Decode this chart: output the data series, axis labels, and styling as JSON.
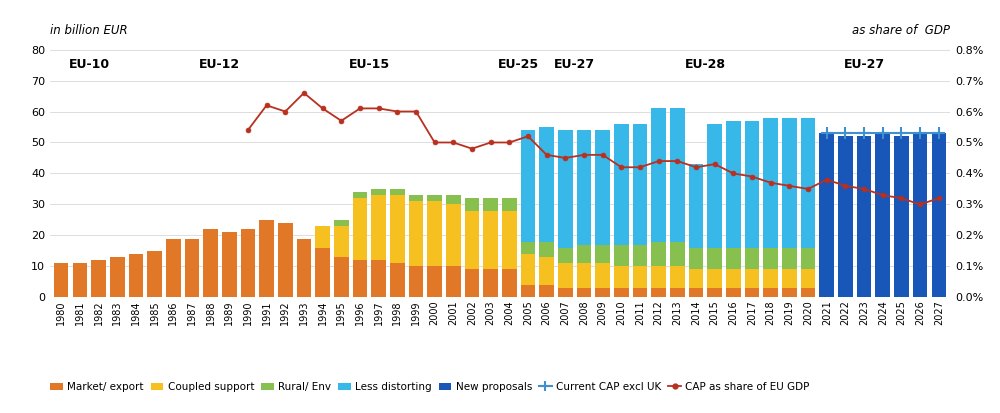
{
  "years": [
    1980,
    1981,
    1982,
    1983,
    1984,
    1985,
    1986,
    1987,
    1988,
    1989,
    1990,
    1991,
    1992,
    1993,
    1994,
    1995,
    1996,
    1997,
    1998,
    1999,
    2000,
    2001,
    2002,
    2003,
    2004,
    2005,
    2006,
    2007,
    2008,
    2009,
    2010,
    2011,
    2012,
    2013,
    2014,
    2015,
    2016,
    2017,
    2018,
    2019,
    2020,
    2021,
    2022,
    2023,
    2024,
    2025,
    2026,
    2027
  ],
  "market_export": [
    11,
    11,
    12,
    13,
    14,
    15,
    19,
    19,
    22,
    21,
    22,
    25,
    24,
    19,
    16,
    13,
    12,
    12,
    11,
    10,
    10,
    10,
    9,
    9,
    9,
    4,
    4,
    3,
    3,
    3,
    3,
    3,
    3,
    3,
    3,
    3,
    3,
    3,
    3,
    3,
    3,
    0,
    0,
    0,
    0,
    0,
    0,
    0
  ],
  "coupled_support": [
    0,
    0,
    0,
    0,
    0,
    0,
    0,
    0,
    0,
    0,
    0,
    0,
    0,
    0,
    7,
    10,
    20,
    21,
    22,
    21,
    21,
    20,
    19,
    19,
    19,
    10,
    9,
    8,
    8,
    8,
    7,
    7,
    7,
    7,
    6,
    6,
    6,
    6,
    6,
    6,
    6,
    0,
    0,
    0,
    0,
    0,
    0,
    0
  ],
  "rural_env": [
    0,
    0,
    0,
    0,
    0,
    0,
    0,
    0,
    0,
    0,
    0,
    0,
    0,
    0,
    0,
    2,
    2,
    2,
    2,
    2,
    2,
    3,
    4,
    4,
    4,
    4,
    5,
    5,
    6,
    6,
    7,
    7,
    8,
    8,
    7,
    7,
    7,
    7,
    7,
    7,
    7,
    0,
    0,
    0,
    0,
    0,
    0,
    0
  ],
  "less_distorting": [
    0,
    0,
    0,
    0,
    0,
    0,
    0,
    0,
    0,
    0,
    0,
    0,
    0,
    0,
    0,
    0,
    0,
    0,
    0,
    0,
    0,
    0,
    0,
    0,
    0,
    36,
    37,
    38,
    37,
    37,
    39,
    39,
    43,
    43,
    27,
    40,
    41,
    41,
    42,
    42,
    42,
    0,
    0,
    0,
    0,
    0,
    0,
    0
  ],
  "new_proposals": [
    0,
    0,
    0,
    0,
    0,
    0,
    0,
    0,
    0,
    0,
    0,
    0,
    0,
    0,
    0,
    0,
    0,
    0,
    0,
    0,
    0,
    0,
    0,
    0,
    0,
    0,
    0,
    0,
    0,
    0,
    0,
    0,
    0,
    0,
    0,
    0,
    0,
    0,
    0,
    0,
    0,
    53,
    52,
    52,
    53,
    52,
    53,
    53
  ],
  "cap_gdp_line_years": [
    1990,
    1991,
    1992,
    1993,
    1994,
    1995,
    1996,
    1997,
    1998,
    1999,
    2000,
    2001,
    2002,
    2003,
    2004,
    2005,
    2006,
    2007,
    2008,
    2009,
    2010,
    2011,
    2012,
    2013,
    2014,
    2015,
    2016,
    2017,
    2018,
    2019,
    2020,
    2021,
    2022,
    2023,
    2024,
    2025,
    2026,
    2027
  ],
  "cap_gdp_line_vals": [
    0.0054,
    0.0062,
    0.006,
    0.0066,
    0.0061,
    0.0057,
    0.0061,
    0.0061,
    0.006,
    0.006,
    0.005,
    0.005,
    0.0048,
    0.005,
    0.005,
    0.0052,
    0.0046,
    0.0045,
    0.0046,
    0.0046,
    0.0042,
    0.0042,
    0.0044,
    0.0044,
    0.0042,
    0.0043,
    0.004,
    0.0039,
    0.0037,
    0.0036,
    0.0035,
    0.0038,
    0.0036,
    0.0035,
    0.0033,
    0.0032,
    0.003,
    0.0032
  ],
  "cap_excl_uk_years": [
    2021,
    2022,
    2023,
    2024,
    2025,
    2026,
    2027
  ],
  "cap_excl_uk_vals": [
    53,
    53,
    53,
    53,
    53,
    53,
    53
  ],
  "eu_labels": [
    {
      "label": "EU-10",
      "xf": 1981.5
    },
    {
      "label": "EU-12",
      "xf": 1988.5
    },
    {
      "label": "EU-15",
      "xf": 1996.5
    },
    {
      "label": "EU-25",
      "xf": 2004.5
    },
    {
      "label": "EU-27",
      "xf": 2007.5
    },
    {
      "label": "EU-28",
      "xf": 2014.5
    },
    {
      "label": "EU-27",
      "xf": 2023.0
    }
  ],
  "colors": {
    "market_export": "#E07828",
    "coupled_support": "#F5C020",
    "rural_env": "#88C050",
    "less_distorting": "#38B8E8",
    "new_proposals": "#1856B8",
    "cap_excl_uk_line": "#4090D0",
    "gdp_line": "#B83020"
  },
  "ylim_left": [
    0,
    80
  ],
  "ylim_right": [
    0,
    0.008
  ],
  "yticks_left": [
    0,
    10,
    20,
    30,
    40,
    50,
    60,
    70,
    80
  ],
  "yticks_right": [
    0,
    0.001,
    0.002,
    0.003,
    0.004,
    0.005,
    0.006,
    0.007,
    0.008
  ],
  "ytick_labels_right": [
    "0.0%",
    "0.1%",
    "0.2%",
    "0.3%",
    "0.4%",
    "0.5%",
    "0.6%",
    "0.7%",
    "0.8%"
  ],
  "left_axis_label": "in billion EUR",
  "right_axis_label": "as share of  GDP"
}
